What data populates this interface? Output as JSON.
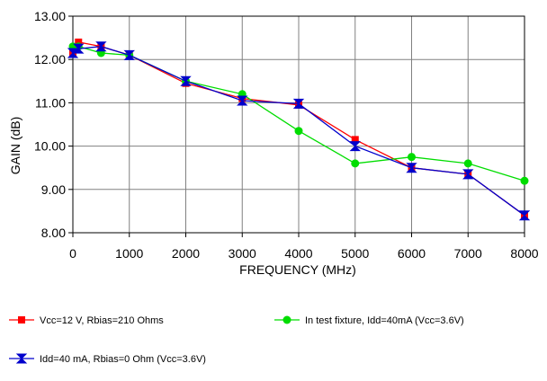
{
  "chart_data": {
    "type": "line",
    "title": "",
    "xlabel": "FREQUENCY (MHz)",
    "ylabel": "GAIN (dB)",
    "xlim": [
      0,
      8000
    ],
    "ylim": [
      8.0,
      13.0
    ],
    "x_ticks": [
      "0",
      "1000",
      "2000",
      "3000",
      "4000",
      "5000",
      "6000",
      "7000",
      "8000"
    ],
    "y_ticks": [
      "8.00",
      "9.00",
      "10.00",
      "11.00",
      "12.00",
      "13.00"
    ],
    "grid": true,
    "legend_position": "bottom",
    "series": [
      {
        "name": "Vcc=12 V, Rbias=210 Ohms",
        "color": "#ff0000",
        "marker": "square",
        "x": [
          0,
          100,
          500,
          1000,
          2000,
          3000,
          4000,
          5000,
          6000,
          7000,
          8000
        ],
        "y": [
          12.15,
          12.4,
          12.3,
          12.1,
          11.45,
          11.1,
          10.95,
          10.15,
          9.5,
          9.35,
          8.4
        ]
      },
      {
        "name": "In test fixture, Idd=40mA (Vcc=3.6V)",
        "color": "#00dd00",
        "marker": "circle",
        "x": [
          0,
          100,
          500,
          1000,
          2000,
          3000,
          4000,
          5000,
          6000,
          7000,
          8000
        ],
        "y": [
          12.3,
          12.3,
          12.15,
          12.1,
          11.5,
          11.2,
          10.35,
          9.6,
          9.75,
          9.6,
          9.2
        ]
      },
      {
        "name": "Idd=40 mA, Rbias=0 Ohm (Vcc=3.6V)",
        "color": "#0000cc",
        "marker": "bowtie",
        "x": [
          0,
          100,
          500,
          1000,
          2000,
          3000,
          4000,
          5000,
          6000,
          7000,
          8000
        ],
        "y": [
          12.15,
          12.25,
          12.3,
          12.1,
          11.5,
          11.05,
          10.98,
          10.0,
          9.5,
          9.35,
          8.4
        ]
      }
    ]
  }
}
